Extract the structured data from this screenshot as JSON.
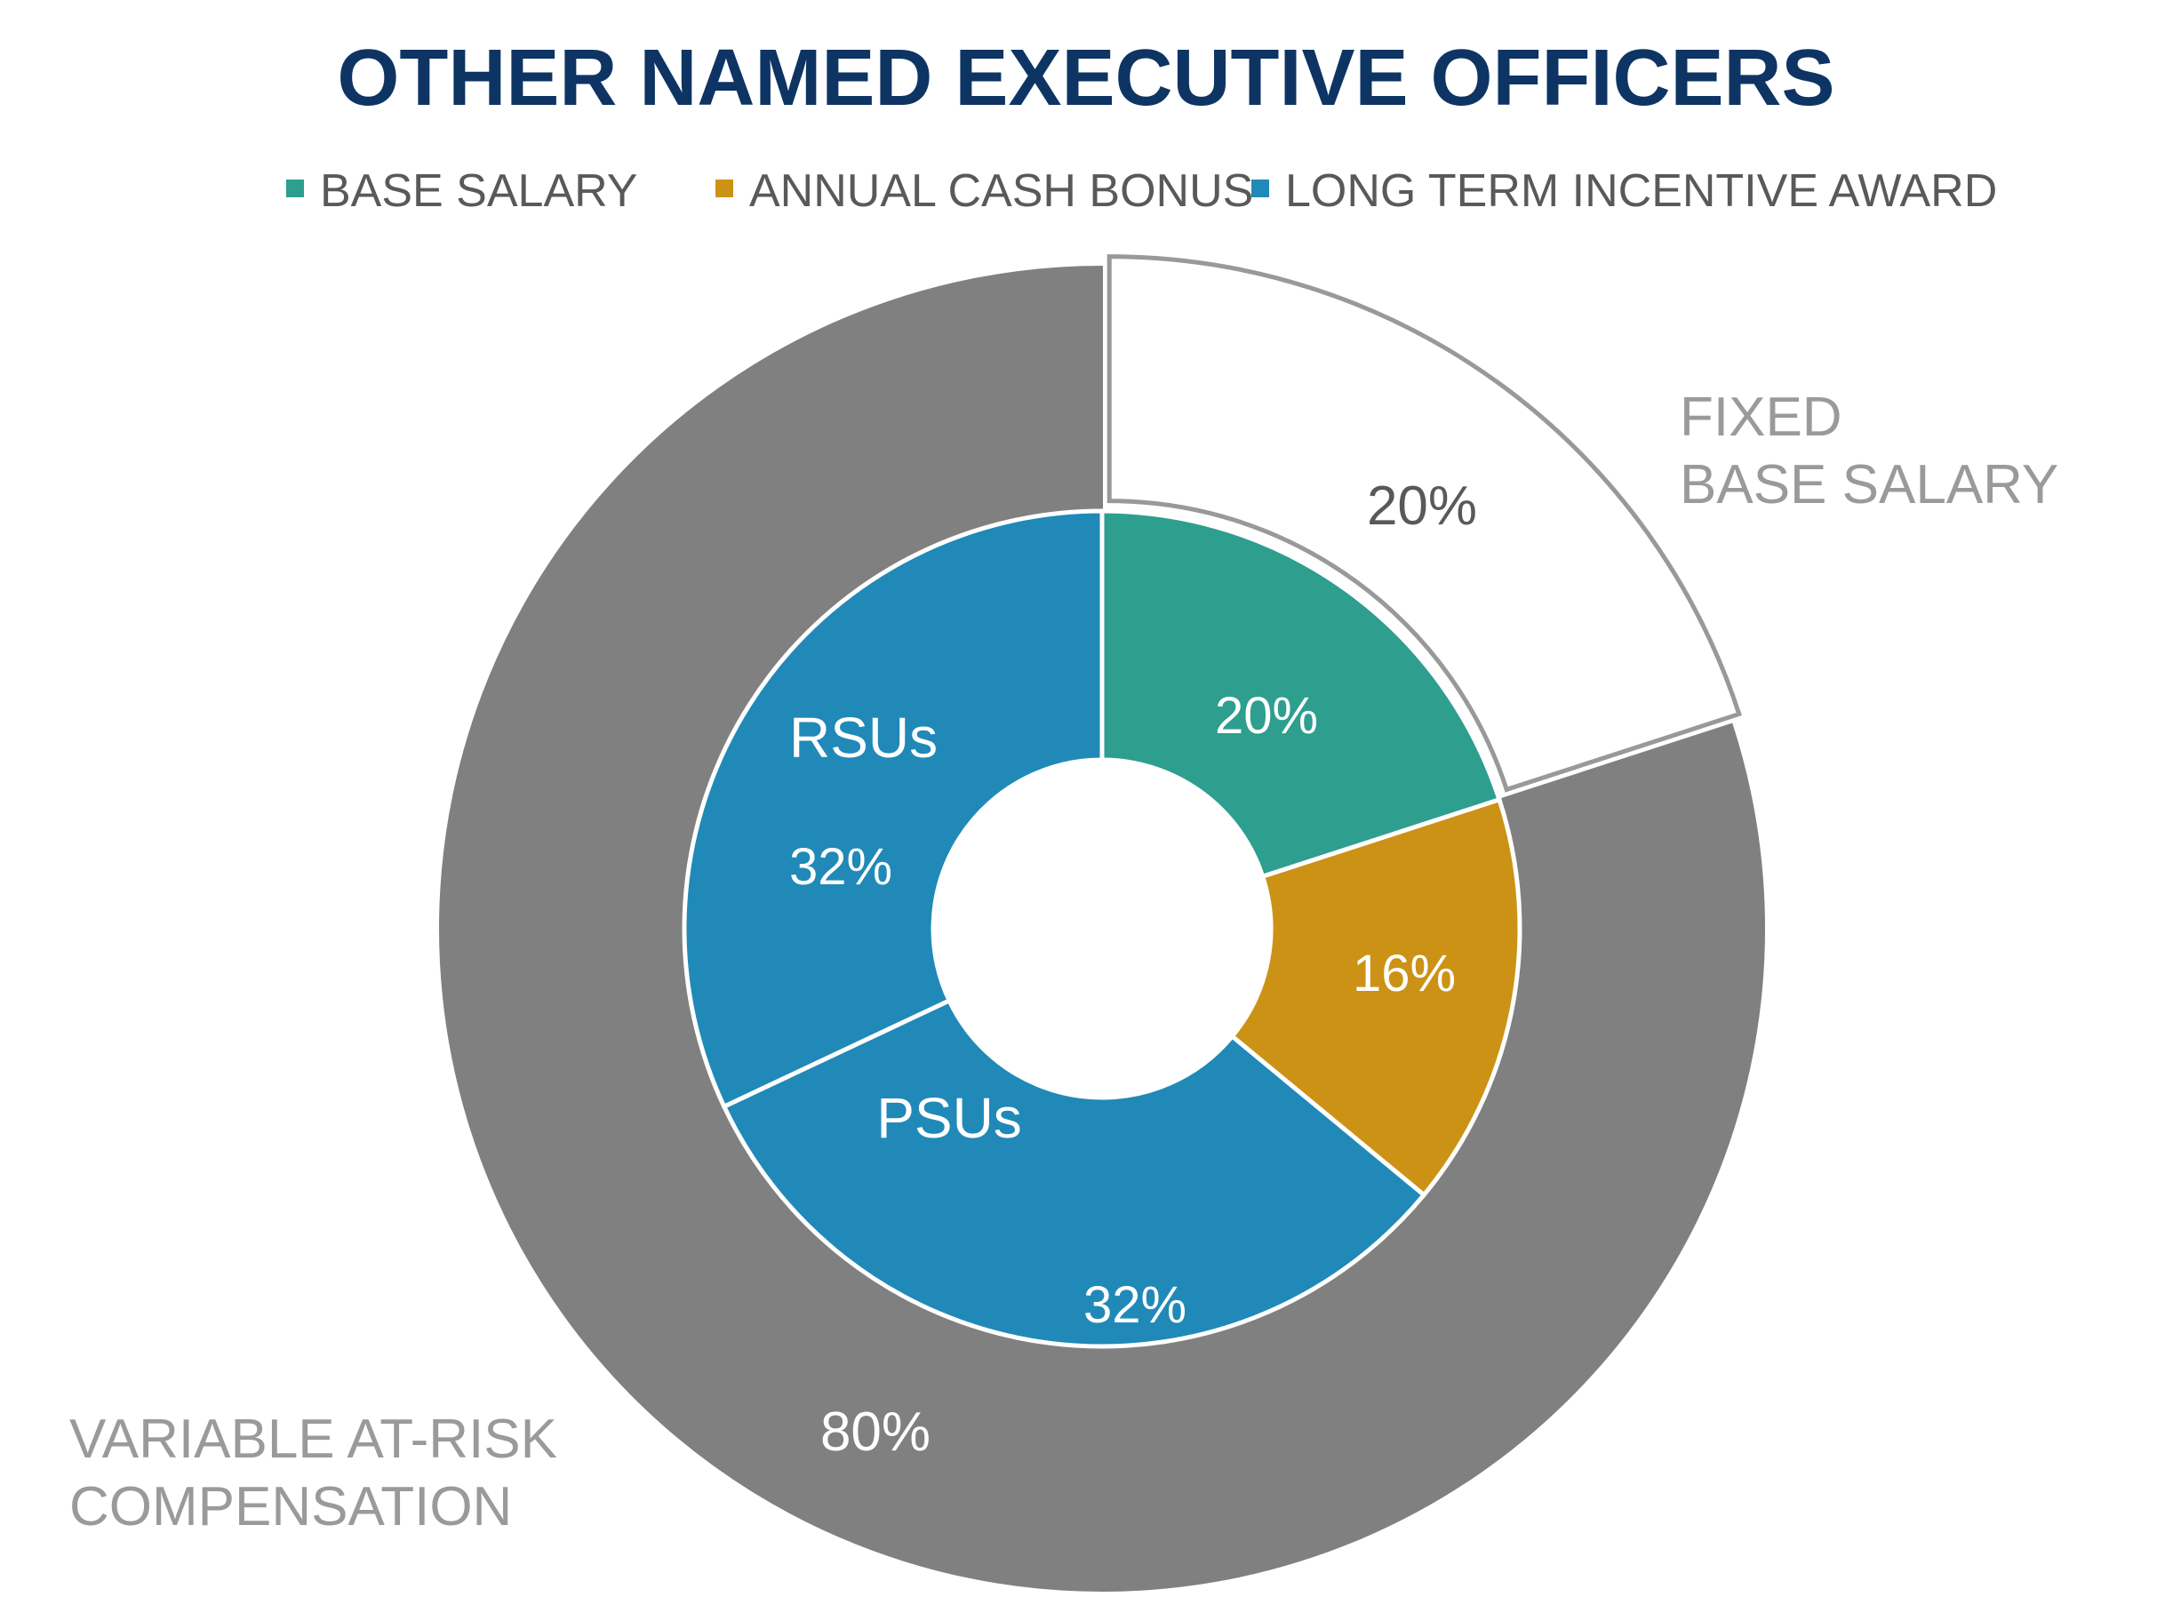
{
  "chart_data": {
    "type": "pie",
    "title": "OTHER NAMED EXECUTIVE OFFICERS",
    "legend": [
      {
        "label": "BASE SALARY",
        "color": "#2e9e8f"
      },
      {
        "label": "ANNUAL CASH BONUS",
        "color": "#cc9216"
      },
      {
        "label": "LONG TERM INCENTIVE AWARD",
        "color": "#2089b8"
      }
    ],
    "outer_ring": [
      {
        "name": "FIXED BASE SALARY",
        "value": 20,
        "value_label": "20%",
        "category_lines": [
          "FIXED",
          "BASE SALARY"
        ],
        "fill": "#ffffff",
        "stroke": "#999999"
      },
      {
        "name": "VARIABLE AT-RISK COMPENSATION",
        "value": 80,
        "value_label": "80%",
        "category_lines": [
          "VARIABLE AT-RISK",
          "COMPENSATION"
        ],
        "fill": "#808080",
        "stroke": "#808080"
      }
    ],
    "inner_ring": [
      {
        "name": "BASE SALARY",
        "value": 20,
        "value_label": "20%",
        "color": "#2e9e8f"
      },
      {
        "name": "ANNUAL CASH BONUS",
        "value": 16,
        "value_label": "16%",
        "color": "#cc9216"
      },
      {
        "name": "PSUs",
        "value": 32,
        "value_label": "32%",
        "sub_label": "PSUs",
        "color": "#2089b8"
      },
      {
        "name": "RSUs",
        "value": 32,
        "value_label": "32%",
        "sub_label": "RSUs",
        "color": "#2089b8"
      }
    ]
  },
  "colors": {
    "title": "#0e3463",
    "legend_text": "#595959",
    "outer_label_text": "#9a9a9a",
    "outer_pct_fixed": "#595959",
    "white": "#ffffff"
  }
}
